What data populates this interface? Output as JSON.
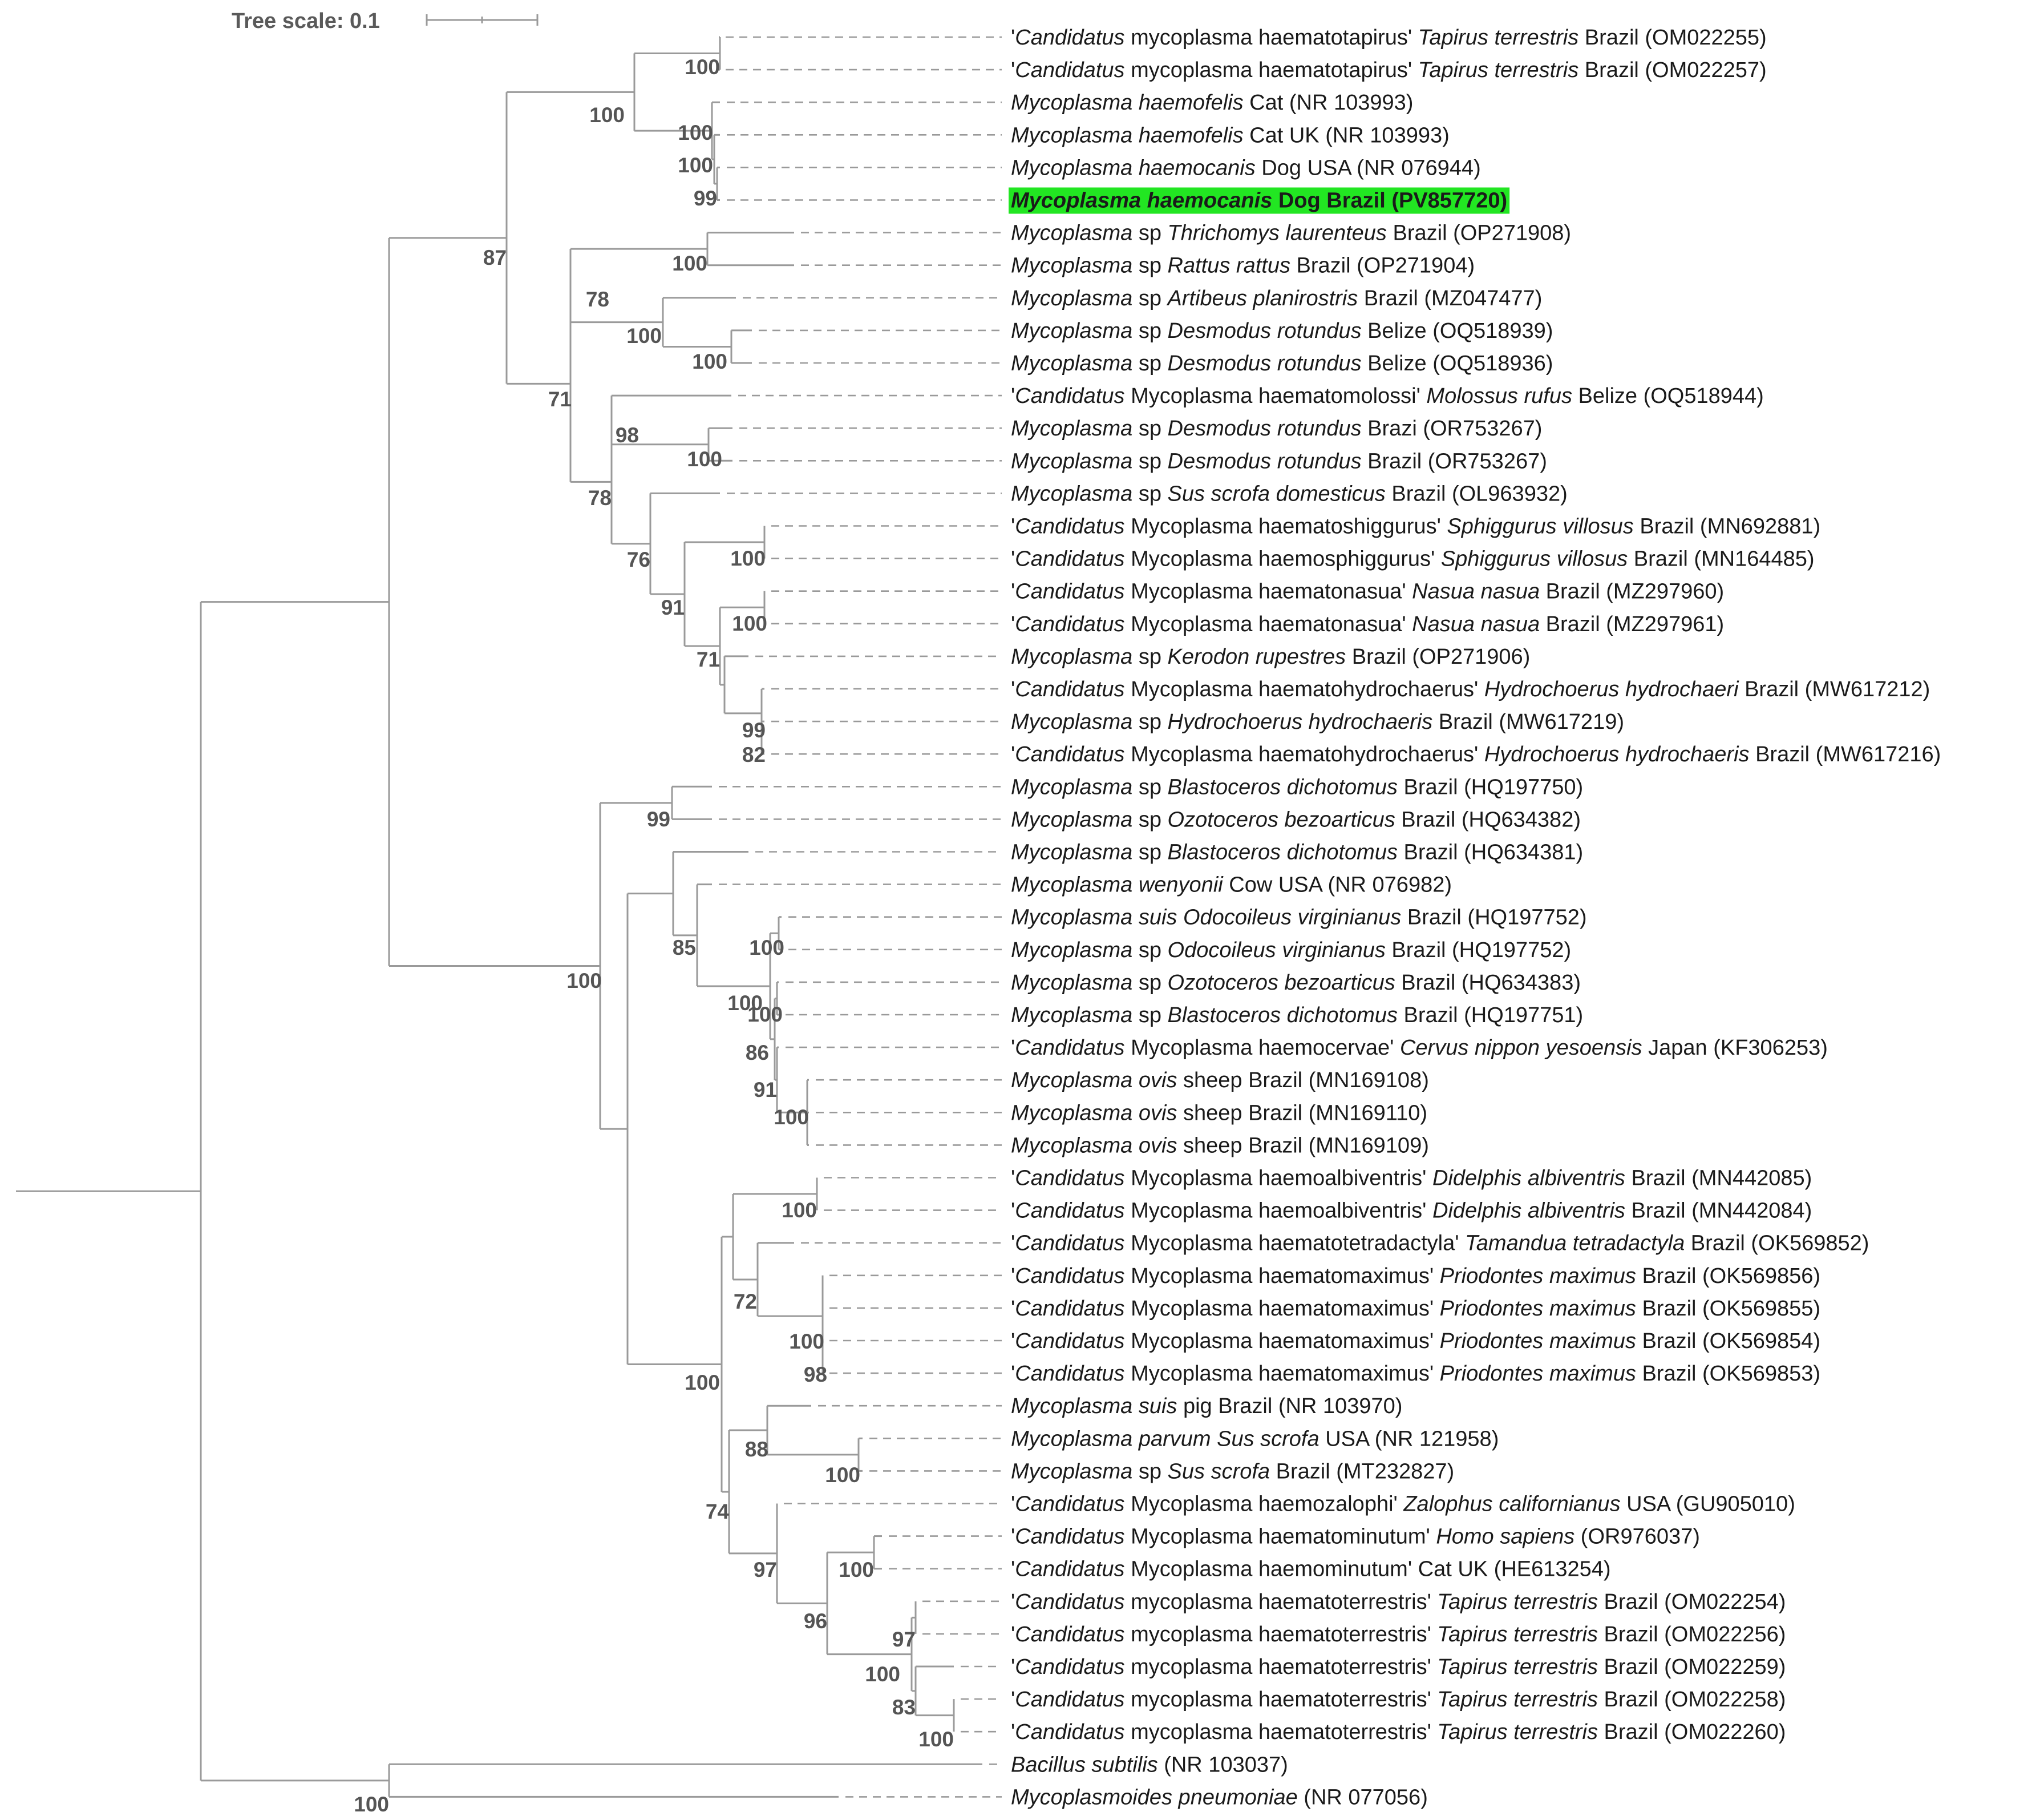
{
  "tree_scale": {
    "label": "Tree scale: 0.1"
  },
  "highlight_color": "#22e622",
  "leaves": [
    {
      "id": "L1",
      "parts": [
        [
          "'",
          0
        ],
        [
          "Candidatus",
          1
        ],
        [
          " mycoplasma haematotapirus' ",
          0
        ],
        [
          "Tapirus terrestris",
          1
        ],
        [
          " Brazil (OM022255)",
          0
        ]
      ]
    },
    {
      "id": "L2",
      "parts": [
        [
          "'",
          0
        ],
        [
          "Candidatus",
          1
        ],
        [
          " mycoplasma haematotapirus' ",
          0
        ],
        [
          "Tapirus terrestris",
          1
        ],
        [
          " Brazil (OM022257)",
          0
        ]
      ]
    },
    {
      "id": "L3",
      "parts": [
        [
          "Mycoplasma haemofelis",
          1
        ],
        [
          " Cat (NR 103993)",
          0
        ]
      ]
    },
    {
      "id": "L4",
      "parts": [
        [
          "Mycoplasma haemofelis",
          1
        ],
        [
          " Cat UK (NR 103993)",
          0
        ]
      ]
    },
    {
      "id": "L5",
      "parts": [
        [
          "Mycoplasma haemocanis",
          1
        ],
        [
          " Dog USA (NR 076944)",
          0
        ]
      ]
    },
    {
      "id": "L6",
      "highlight": true,
      "parts": [
        [
          "Mycoplasma haemocanis",
          1
        ],
        [
          " Dog Brazil (PV857720)",
          0
        ]
      ]
    },
    {
      "id": "L7",
      "parts": [
        [
          "Mycoplasma",
          1
        ],
        [
          " sp ",
          0
        ],
        [
          "Thrichomys laurenteus",
          1
        ],
        [
          " Brazil (OP271908)",
          0
        ]
      ]
    },
    {
      "id": "L8",
      "parts": [
        [
          "Mycoplasma",
          1
        ],
        [
          " sp ",
          0
        ],
        [
          "Rattus rattus",
          1
        ],
        [
          " Brazil (OP271904)",
          0
        ]
      ]
    },
    {
      "id": "L9",
      "parts": [
        [
          "Mycoplasma",
          1
        ],
        [
          " sp ",
          0
        ],
        [
          "Artibeus planirostris",
          1
        ],
        [
          " Brazil (MZ047477)",
          0
        ]
      ]
    },
    {
      "id": "L10",
      "parts": [
        [
          "Mycoplasma",
          1
        ],
        [
          " sp ",
          0
        ],
        [
          "Desmodus rotundus",
          1
        ],
        [
          " Belize (OQ518939)",
          0
        ]
      ]
    },
    {
      "id": "L11",
      "parts": [
        [
          "Mycoplasma",
          1
        ],
        [
          " sp ",
          0
        ],
        [
          "Desmodus rotundus",
          1
        ],
        [
          " Belize (OQ518936)",
          0
        ]
      ]
    },
    {
      "id": "L12",
      "parts": [
        [
          "'",
          0
        ],
        [
          "Candidatus",
          1
        ],
        [
          " Mycoplasma haematomolossi' ",
          0
        ],
        [
          "Molossus rufus",
          1
        ],
        [
          " Belize (OQ518944)",
          0
        ]
      ]
    },
    {
      "id": "L13",
      "parts": [
        [
          "Mycoplasma",
          1
        ],
        [
          " sp ",
          0
        ],
        [
          "Desmodus rotundus",
          1
        ],
        [
          " Brazi (OR753267)",
          0
        ]
      ]
    },
    {
      "id": "L14",
      "parts": [
        [
          "Mycoplasma",
          1
        ],
        [
          " sp ",
          0
        ],
        [
          "Desmodus rotundus",
          1
        ],
        [
          " Brazil (OR753267)",
          0
        ]
      ]
    },
    {
      "id": "L15",
      "parts": [
        [
          "Mycoplasma",
          1
        ],
        [
          " sp ",
          0
        ],
        [
          "Sus scrofa domesticus",
          1
        ],
        [
          " Brazil (OL963932)",
          0
        ]
      ]
    },
    {
      "id": "L16",
      "parts": [
        [
          "'",
          0
        ],
        [
          "Candidatus",
          1
        ],
        [
          " Mycoplasma haematoshiggurus' ",
          0
        ],
        [
          "Sphiggurus villosus",
          1
        ],
        [
          " Brazil (MN692881)",
          0
        ]
      ]
    },
    {
      "id": "L17",
      "parts": [
        [
          "'",
          0
        ],
        [
          "Candidatus",
          1
        ],
        [
          " Mycoplasma haemosphiggurus' ",
          0
        ],
        [
          "Sphiggurus villosus",
          1
        ],
        [
          " Brazil (MN164485)",
          0
        ]
      ]
    },
    {
      "id": "L18",
      "parts": [
        [
          "'",
          0
        ],
        [
          "Candidatus",
          1
        ],
        [
          " Mycoplasma haematonasua' ",
          0
        ],
        [
          "Nasua nasua",
          1
        ],
        [
          " Brazil (MZ297960)",
          0
        ]
      ]
    },
    {
      "id": "L19",
      "parts": [
        [
          "'",
          0
        ],
        [
          "Candidatus",
          1
        ],
        [
          " Mycoplasma haematonasua' ",
          0
        ],
        [
          "Nasua nasua",
          1
        ],
        [
          " Brazil (MZ297961)",
          0
        ]
      ]
    },
    {
      "id": "L20",
      "parts": [
        [
          "Mycoplasma",
          1
        ],
        [
          " sp ",
          0
        ],
        [
          "Kerodon rupestres",
          1
        ],
        [
          " Brazil (OP271906)",
          0
        ]
      ]
    },
    {
      "id": "L21",
      "parts": [
        [
          "'",
          0
        ],
        [
          "Candidatus",
          1
        ],
        [
          " Mycoplasma haematohydrochaerus' ",
          0
        ],
        [
          "Hydrochoerus hydrochaeri",
          1
        ],
        [
          " Brazil (MW617212)",
          0
        ]
      ]
    },
    {
      "id": "L22",
      "parts": [
        [
          "Mycoplasma",
          1
        ],
        [
          " sp ",
          0
        ],
        [
          "Hydrochoerus hydrochaeris",
          1
        ],
        [
          " Brazil (MW617219)",
          0
        ]
      ]
    },
    {
      "id": "L23",
      "parts": [
        [
          "'",
          0
        ],
        [
          "Candidatus",
          1
        ],
        [
          " Mycoplasma haematohydrochaerus' ",
          0
        ],
        [
          "Hydrochoerus hydrochaeris",
          1
        ],
        [
          " Brazil (MW617216)",
          0
        ]
      ]
    },
    {
      "id": "L24",
      "parts": [
        [
          "Mycoplasma",
          1
        ],
        [
          " sp ",
          0
        ],
        [
          "Blastoceros dichotomus",
          1
        ],
        [
          " Brazil (HQ197750)",
          0
        ]
      ]
    },
    {
      "id": "L25",
      "parts": [
        [
          "Mycoplasma",
          1
        ],
        [
          " sp ",
          0
        ],
        [
          "Ozotoceros bezoarticus",
          1
        ],
        [
          " Brazil (HQ634382)",
          0
        ]
      ]
    },
    {
      "id": "L26",
      "parts": [
        [
          "Mycoplasma",
          1
        ],
        [
          " sp ",
          0
        ],
        [
          "Blastoceros dichotomus",
          1
        ],
        [
          " Brazil (HQ634381)",
          0
        ]
      ]
    },
    {
      "id": "L27",
      "parts": [
        [
          "Mycoplasma wenyonii",
          1
        ],
        [
          " Cow USA (NR 076982)",
          0
        ]
      ]
    },
    {
      "id": "L28",
      "parts": [
        [
          "Mycoplasma suis Odocoileus virginianus",
          1
        ],
        [
          " Brazil (HQ197752)",
          0
        ]
      ]
    },
    {
      "id": "L29",
      "parts": [
        [
          "Mycoplasma",
          1
        ],
        [
          " sp ",
          0
        ],
        [
          "Odocoileus virginianus",
          1
        ],
        [
          " Brazil (HQ197752)",
          0
        ]
      ]
    },
    {
      "id": "L30",
      "parts": [
        [
          "Mycoplasma",
          1
        ],
        [
          " sp ",
          0
        ],
        [
          "Ozotoceros bezoarticus",
          1
        ],
        [
          " Brazil (HQ634383)",
          0
        ]
      ]
    },
    {
      "id": "L31",
      "parts": [
        [
          "Mycoplasma",
          1
        ],
        [
          " sp ",
          0
        ],
        [
          "Blastoceros dichotomus",
          1
        ],
        [
          " Brazil (HQ197751)",
          0
        ]
      ]
    },
    {
      "id": "L32",
      "parts": [
        [
          "'",
          0
        ],
        [
          "Candidatus",
          1
        ],
        [
          " Mycoplasma haemocervae' ",
          0
        ],
        [
          "Cervus nippon yesoensis",
          1
        ],
        [
          " Japan (KF306253)",
          0
        ]
      ]
    },
    {
      "id": "L33",
      "parts": [
        [
          "Mycoplasma ovis",
          1
        ],
        [
          " sheep Brazil (MN169108)",
          0
        ]
      ]
    },
    {
      "id": "L34",
      "parts": [
        [
          "Mycoplasma ovis",
          1
        ],
        [
          " sheep Brazil (MN169110)",
          0
        ]
      ]
    },
    {
      "id": "L35",
      "parts": [
        [
          "Mycoplasma ovis",
          1
        ],
        [
          " sheep Brazil (MN169109)",
          0
        ]
      ]
    },
    {
      "id": "L36",
      "parts": [
        [
          "'",
          0
        ],
        [
          "Candidatus",
          1
        ],
        [
          " Mycoplasma haemoalbiventris' ",
          0
        ],
        [
          "Didelphis albiventris",
          1
        ],
        [
          " Brazil (MN442085)",
          0
        ]
      ]
    },
    {
      "id": "L37",
      "parts": [
        [
          "'",
          0
        ],
        [
          "Candidatus",
          1
        ],
        [
          " Mycoplasma haemoalbiventris' ",
          0
        ],
        [
          "Didelphis albiventris",
          1
        ],
        [
          " Brazil (MN442084)",
          0
        ]
      ]
    },
    {
      "id": "L38",
      "parts": [
        [
          "'",
          0
        ],
        [
          "Candidatus",
          1
        ],
        [
          " Mycoplasma haematotetradactyla' ",
          0
        ],
        [
          "Tamandua tetradactyla",
          1
        ],
        [
          " Brazil (OK569852)",
          0
        ]
      ]
    },
    {
      "id": "L39",
      "parts": [
        [
          "'",
          0
        ],
        [
          "Candidatus",
          1
        ],
        [
          " Mycoplasma haematomaximus' ",
          0
        ],
        [
          "Priodontes maximus",
          1
        ],
        [
          " Brazil (OK569856)",
          0
        ]
      ]
    },
    {
      "id": "L40",
      "parts": [
        [
          "'",
          0
        ],
        [
          "Candidatus",
          1
        ],
        [
          " Mycoplasma haematomaximus' ",
          0
        ],
        [
          "Priodontes maximus",
          1
        ],
        [
          " Brazil (OK569855)",
          0
        ]
      ]
    },
    {
      "id": "L41",
      "parts": [
        [
          "'",
          0
        ],
        [
          "Candidatus",
          1
        ],
        [
          " Mycoplasma haematomaximus' ",
          0
        ],
        [
          "Priodontes maximus",
          1
        ],
        [
          " Brazil (OK569854)",
          0
        ]
      ]
    },
    {
      "id": "L42",
      "parts": [
        [
          "'",
          0
        ],
        [
          "Candidatus",
          1
        ],
        [
          " Mycoplasma haematomaximus' ",
          0
        ],
        [
          "Priodontes maximus",
          1
        ],
        [
          " Brazil (OK569853)",
          0
        ]
      ]
    },
    {
      "id": "L43",
      "parts": [
        [
          "Mycoplasma suis",
          1
        ],
        [
          " pig Brazil (NR 103970)",
          0
        ]
      ]
    },
    {
      "id": "L44",
      "parts": [
        [
          "Mycoplasma parvum Sus scrofa",
          1
        ],
        [
          " USA (NR 121958)",
          0
        ]
      ]
    },
    {
      "id": "L45",
      "parts": [
        [
          "Mycoplasma",
          1
        ],
        [
          " sp ",
          0
        ],
        [
          "Sus scrofa",
          1
        ],
        [
          " Brazil (MT232827)",
          0
        ]
      ]
    },
    {
      "id": "L46",
      "parts": [
        [
          "'",
          0
        ],
        [
          "Candidatus",
          1
        ],
        [
          " Mycoplasma haemozalophi' ",
          0
        ],
        [
          "Zalophus californianus",
          1
        ],
        [
          " USA (GU905010)",
          0
        ]
      ]
    },
    {
      "id": "L47",
      "parts": [
        [
          "'",
          0
        ],
        [
          "Candidatus",
          1
        ],
        [
          " Mycoplasma haematominutum' ",
          0
        ],
        [
          "Homo sapiens",
          1
        ],
        [
          " (OR976037)",
          0
        ]
      ]
    },
    {
      "id": "L48",
      "parts": [
        [
          "'",
          0
        ],
        [
          "Candidatus",
          1
        ],
        [
          " Mycoplasma haemominutum' Cat UK (HE613254)",
          0
        ]
      ]
    },
    {
      "id": "L49",
      "parts": [
        [
          "'",
          0
        ],
        [
          "Candidatus",
          1
        ],
        [
          " mycoplasma haematoterrestris' ",
          0
        ],
        [
          "Tapirus terrestris",
          1
        ],
        [
          " Brazil (OM022254)",
          0
        ]
      ]
    },
    {
      "id": "L50",
      "parts": [
        [
          "'",
          0
        ],
        [
          "Candidatus",
          1
        ],
        [
          " mycoplasma haematoterrestris' ",
          0
        ],
        [
          "Tapirus terrestris",
          1
        ],
        [
          " Brazil (OM022256)",
          0
        ]
      ]
    },
    {
      "id": "L51",
      "parts": [
        [
          "'",
          0
        ],
        [
          "Candidatus",
          1
        ],
        [
          " mycoplasma haematoterrestris' ",
          0
        ],
        [
          "Tapirus terrestris",
          1
        ],
        [
          " Brazil (OM022259)",
          0
        ]
      ]
    },
    {
      "id": "L52",
      "parts": [
        [
          "'",
          0
        ],
        [
          "Candidatus",
          1
        ],
        [
          " mycoplasma haematoterrestris' ",
          0
        ],
        [
          "Tapirus terrestris",
          1
        ],
        [
          " Brazil (OM022258)",
          0
        ]
      ]
    },
    {
      "id": "L53",
      "parts": [
        [
          "'",
          0
        ],
        [
          "Candidatus",
          1
        ],
        [
          " mycoplasma haematoterrestris' ",
          0
        ],
        [
          "Tapirus terrestris",
          1
        ],
        [
          " Brazil (OM022260)",
          0
        ]
      ]
    },
    {
      "id": "L54",
      "parts": [
        [
          "Bacillus subtilis",
          1
        ],
        [
          " (NR 103037)",
          0
        ]
      ]
    },
    {
      "id": "L55",
      "parts": [
        [
          "Mycoplasmoides pneumoniae",
          1
        ],
        [
          " (NR 077056)",
          0
        ]
      ]
    }
  ],
  "bootstrap_labels": [
    {
      "id": "B1",
      "value": "100"
    },
    {
      "id": "B2",
      "value": "100"
    },
    {
      "id": "B3",
      "value": "100"
    },
    {
      "id": "B4",
      "value": "100"
    },
    {
      "id": "B5",
      "value": "99"
    },
    {
      "id": "B6",
      "value": "87"
    },
    {
      "id": "B7",
      "value": "100"
    },
    {
      "id": "B8",
      "value": "78"
    },
    {
      "id": "B9",
      "value": "100"
    },
    {
      "id": "B10",
      "value": "100"
    },
    {
      "id": "B11",
      "value": "71"
    },
    {
      "id": "B12",
      "value": "98"
    },
    {
      "id": "B13",
      "value": "100"
    },
    {
      "id": "B14",
      "value": "78"
    },
    {
      "id": "B15",
      "value": "76"
    },
    {
      "id": "B16",
      "value": "100"
    },
    {
      "id": "B17",
      "value": "91"
    },
    {
      "id": "B18",
      "value": "100"
    },
    {
      "id": "B19",
      "value": "71"
    },
    {
      "id": "B20",
      "value": "99"
    },
    {
      "id": "B21",
      "value": "82"
    },
    {
      "id": "B22",
      "value": "99"
    },
    {
      "id": "B23",
      "value": "100"
    },
    {
      "id": "B24",
      "value": "85"
    },
    {
      "id": "B25",
      "value": "100"
    },
    {
      "id": "B26",
      "value": "100"
    },
    {
      "id": "B27",
      "value": "100"
    },
    {
      "id": "B28",
      "value": "86"
    },
    {
      "id": "B29",
      "value": "91"
    },
    {
      "id": "B30",
      "value": "100"
    },
    {
      "id": "B31",
      "value": "100"
    },
    {
      "id": "B32",
      "value": "72"
    },
    {
      "id": "B33",
      "value": "100"
    },
    {
      "id": "B34",
      "value": "98"
    },
    {
      "id": "B35",
      "value": "100"
    },
    {
      "id": "B36",
      "value": "88"
    },
    {
      "id": "B37",
      "value": "100"
    },
    {
      "id": "B38",
      "value": "74"
    },
    {
      "id": "B39",
      "value": "97"
    },
    {
      "id": "B40",
      "value": "100"
    },
    {
      "id": "B41",
      "value": "96"
    },
    {
      "id": "B42",
      "value": "97"
    },
    {
      "id": "B43",
      "value": "100"
    },
    {
      "id": "B44",
      "value": "83"
    },
    {
      "id": "B45",
      "value": "100"
    },
    {
      "id": "B46",
      "value": "100"
    }
  ]
}
